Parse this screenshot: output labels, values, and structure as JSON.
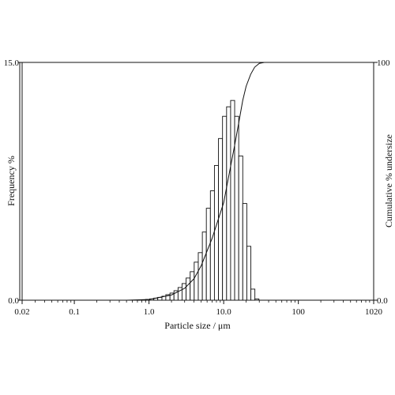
{
  "chart_data": {
    "type": "bar",
    "xlabel": "Particle size / μm",
    "ylabel_left": "Frequency %",
    "ylabel_right": "Cumulative % undersize",
    "xscale": "log",
    "xlim": [
      0.02,
      1020
    ],
    "ylim_left": [
      0.0,
      15.0
    ],
    "ylim_right": [
      0.0,
      100
    ],
    "x_tick_labels": [
      "0.02",
      "0.1",
      "1.0",
      "10.0",
      "100",
      "1020"
    ],
    "x_tick_values": [
      0.02,
      0.1,
      1.0,
      10.0,
      100,
      1020
    ],
    "y_left_tick_labels": [
      "0.0",
      "15.0"
    ],
    "y_left_tick_values": [
      0.0,
      15.0
    ],
    "y_right_tick_labels": [
      "0.0",
      "100"
    ],
    "y_right_tick_values": [
      0.0,
      100
    ],
    "grid": false,
    "series": [
      {
        "type": "bar",
        "bin_edges": [
          0.8,
          0.9,
          1.02,
          1.16,
          1.31,
          1.49,
          1.68,
          1.91,
          2.16,
          2.45,
          2.77,
          3.14,
          3.56,
          4.03,
          4.57,
          5.18,
          5.86,
          6.64,
          7.52,
          8.52,
          9.65,
          10.94,
          12.39,
          14.03,
          15.9,
          18.01,
          20.4,
          23.11,
          26.18,
          29.66
        ],
        "values": [
          0.03,
          0.05,
          0.08,
          0.13,
          0.18,
          0.25,
          0.35,
          0.45,
          0.6,
          0.8,
          1.05,
          1.4,
          1.8,
          2.4,
          3.0,
          4.3,
          5.8,
          6.9,
          8.5,
          10.2,
          11.6,
          12.2,
          12.6,
          11.6,
          9.1,
          6.1,
          3.4,
          0.7,
          0.08
        ]
      },
      {
        "type": "line",
        "axis": "right",
        "x": [
          0.5,
          1.0,
          2.0,
          3.0,
          4.0,
          5.0,
          7.0,
          10.0,
          12.0,
          14.0,
          16.0,
          18.0,
          20.0,
          23.0,
          26.0,
          30.0,
          35.0,
          50.0
        ],
        "y": [
          0.0,
          0.3,
          2.2,
          5.0,
          9.0,
          14.5,
          26.0,
          41.0,
          54.0,
          65.0,
          75.0,
          84.0,
          90.0,
          95.0,
          98.0,
          99.6,
          100.0,
          100.0
        ]
      }
    ]
  }
}
